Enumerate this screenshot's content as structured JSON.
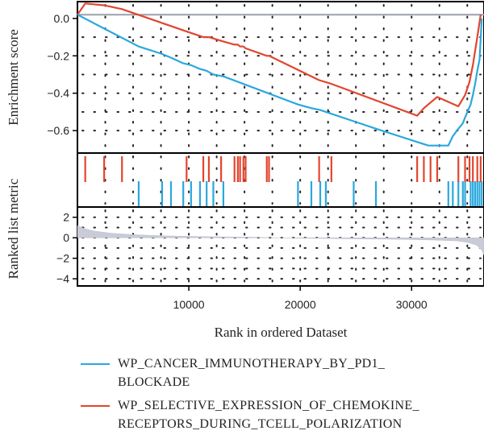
{
  "chart_data": {
    "type": "line",
    "title": "",
    "xlabel": "Rank in ordered Dataset",
    "x_ticks": [
      10000,
      20000,
      30000
    ],
    "xlim": [
      0,
      36500
    ],
    "panels": {
      "enrichment": {
        "ylabel": "Enrichment score",
        "ylim": [
          -0.72,
          0.09
        ],
        "y_ticks": [
          0.0,
          -0.2,
          -0.4,
          -0.6
        ],
        "y_tick_labels": [
          "0.0",
          "−0.2",
          "−0.4",
          "−0.6"
        ],
        "zero_line": 0.02
      },
      "ranked_metric": {
        "ylabel": "Ranked list metric",
        "ylim": [
          -4.7,
          3.0
        ],
        "y_ticks": [
          2,
          0,
          -2,
          -4
        ],
        "y_tick_labels": [
          "2",
          "0",
          "−2",
          "−4"
        ]
      }
    },
    "grid": true,
    "legend_position": "bottom",
    "series": [
      {
        "name": "WP_CANCER_IMMUNOTHERAPY_BY_PD1_\nBLOCKADE",
        "color": "#2aa8dd",
        "hits": [
          5500,
          7600,
          8400,
          9500,
          10200,
          11000,
          11600,
          12200,
          13100,
          19800,
          21000,
          21800,
          22300,
          24800,
          26800,
          33300,
          33700,
          34200,
          34600,
          34800,
          35300,
          35500,
          35700,
          35900,
          36100,
          36300
        ],
        "curve": [
          [
            0,
            0.02
          ],
          [
            5500,
            -0.15
          ],
          [
            7600,
            -0.19
          ],
          [
            8400,
            -0.21
          ],
          [
            9500,
            -0.24
          ],
          [
            10200,
            -0.25
          ],
          [
            11000,
            -0.27
          ],
          [
            11600,
            -0.28
          ],
          [
            12200,
            -0.3
          ],
          [
            13100,
            -0.31
          ],
          [
            19800,
            -0.46
          ],
          [
            21000,
            -0.48
          ],
          [
            21800,
            -0.49
          ],
          [
            22300,
            -0.5
          ],
          [
            24800,
            -0.55
          ],
          [
            26800,
            -0.59
          ],
          [
            31500,
            -0.68
          ],
          [
            33300,
            -0.68
          ],
          [
            33700,
            -0.63
          ],
          [
            34200,
            -0.59
          ],
          [
            34600,
            -0.56
          ],
          [
            34800,
            -0.53
          ],
          [
            35300,
            -0.46
          ],
          [
            35500,
            -0.41
          ],
          [
            35700,
            -0.35
          ],
          [
            35900,
            -0.28
          ],
          [
            36100,
            -0.22
          ],
          [
            36300,
            0.0
          ]
        ]
      },
      {
        "name": "WP_SELECTIVE_EXPRESSION_OF_CHEMOKINE_\nRECEPTORS_DURING_TCELL_POLARIZATION",
        "color": "#e2452f",
        "hits": [
          700,
          2400,
          4000,
          9800,
          11300,
          11800,
          12900,
          14100,
          14400,
          14600,
          14900,
          15100,
          17000,
          17200,
          21700,
          22800,
          30500,
          31100,
          31700,
          32300,
          34200,
          34800,
          35200,
          35500,
          35900,
          36200
        ],
        "curve": [
          [
            0,
            0.02
          ],
          [
            700,
            0.08
          ],
          [
            2400,
            0.07
          ],
          [
            4000,
            0.05
          ],
          [
            9800,
            -0.07
          ],
          [
            11300,
            -0.1
          ],
          [
            11800,
            -0.1
          ],
          [
            12900,
            -0.12
          ],
          [
            14100,
            -0.14
          ],
          [
            14400,
            -0.14
          ],
          [
            14600,
            -0.15
          ],
          [
            14900,
            -0.15
          ],
          [
            15100,
            -0.16
          ],
          [
            17000,
            -0.2
          ],
          [
            17200,
            -0.2
          ],
          [
            21700,
            -0.33
          ],
          [
            22800,
            -0.35
          ],
          [
            30500,
            -0.52
          ],
          [
            31100,
            -0.48
          ],
          [
            31700,
            -0.45
          ],
          [
            32300,
            -0.42
          ],
          [
            34200,
            -0.47
          ],
          [
            34800,
            -0.41
          ],
          [
            35200,
            -0.34
          ],
          [
            35500,
            -0.25
          ],
          [
            35900,
            -0.1
          ],
          [
            36200,
            0.02
          ]
        ]
      }
    ],
    "ranked_metric": [
      [
        0,
        1.2
      ],
      [
        600,
        0.9
      ],
      [
        1500,
        0.65
      ],
      [
        3000,
        0.45
      ],
      [
        5000,
        0.3
      ],
      [
        8000,
        0.18
      ],
      [
        12000,
        0.1
      ],
      [
        16000,
        0.05
      ],
      [
        18000,
        0.0
      ],
      [
        21000,
        -0.05
      ],
      [
        25000,
        -0.1
      ],
      [
        29000,
        -0.15
      ],
      [
        32000,
        -0.22
      ],
      [
        34000,
        -0.3
      ],
      [
        35000,
        -0.45
      ],
      [
        35800,
        -0.7
      ],
      [
        36300,
        -1.2
      ],
      [
        36500,
        -1.7
      ]
    ]
  }
}
